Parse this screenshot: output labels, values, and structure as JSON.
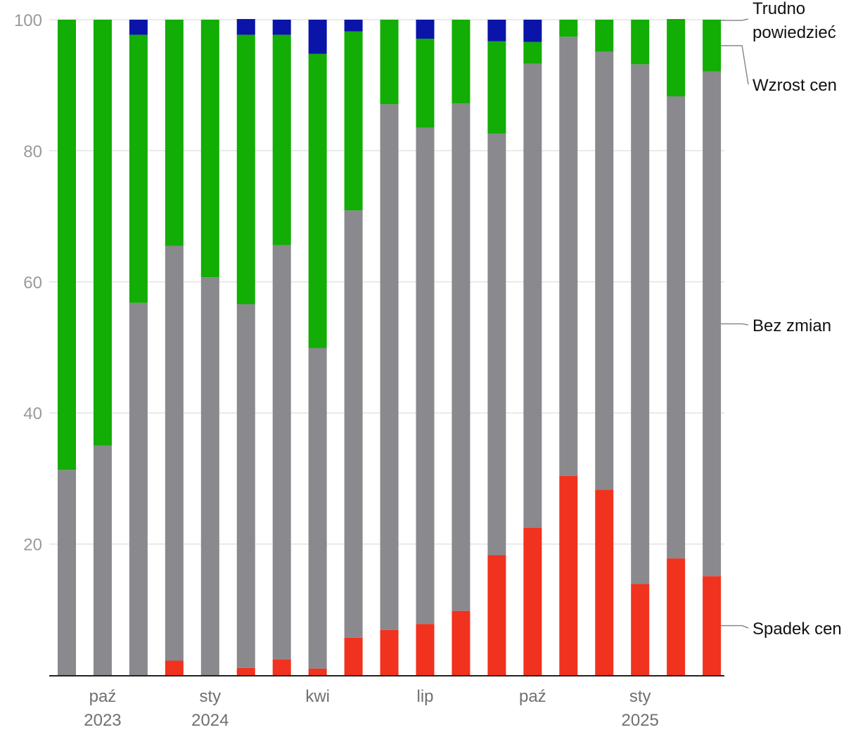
{
  "chart_data": {
    "type": "bar",
    "stacked": true,
    "ylim": [
      0,
      100
    ],
    "yticks": [
      20,
      40,
      60,
      80,
      100
    ],
    "grid": true,
    "legend_position": "right",
    "x_tick_labels": [
      {
        "index": 1,
        "label": "paź",
        "sublabel": "2023"
      },
      {
        "index": 4,
        "label": "sty",
        "sublabel": "2024"
      },
      {
        "index": 7,
        "label": "kwi",
        "sublabel": ""
      },
      {
        "index": 10,
        "label": "lip",
        "sublabel": ""
      },
      {
        "index": 13,
        "label": "paź",
        "sublabel": ""
      },
      {
        "index": 16,
        "label": "sty",
        "sublabel": "2025"
      }
    ],
    "series": [
      {
        "name": "Spadek cen",
        "color": "#f0321e",
        "values": [
          0,
          0,
          0,
          2.2,
          0,
          1.1,
          2.4,
          1.0,
          5.7,
          6.9,
          7.8,
          9.8,
          18.3,
          22.5,
          30.4,
          28.3,
          13.9,
          17.8,
          15.1
        ]
      },
      {
        "name": "Bez zmian",
        "color": "#8a898e",
        "values": [
          31.3,
          35.0,
          56.8,
          63.3,
          60.7,
          55.5,
          63.2,
          48.9,
          65.2,
          80.2,
          75.7,
          77.4,
          64.3,
          70.8,
          67.0,
          66.8,
          79.3,
          70.5,
          77.0
        ]
      },
      {
        "name": "Wzrost cen",
        "color": "#12ad05",
        "values": [
          68.7,
          65.0,
          40.9,
          34.5,
          39.3,
          41.1,
          32.1,
          44.9,
          27.3,
          12.9,
          13.6,
          12.8,
          14.1,
          3.3,
          2.6,
          4.9,
          6.8,
          11.8,
          7.9
        ]
      },
      {
        "name": "Trudno powiedzieć",
        "color": "#0a14a8",
        "values": [
          0,
          0,
          2.3,
          0,
          0,
          2.4,
          2.3,
          5.2,
          1.8,
          0,
          2.9,
          0,
          3.3,
          3.4,
          0,
          0,
          0,
          0,
          0
        ]
      }
    ],
    "legend": [
      {
        "series": 0,
        "label": "Spadek cen"
      },
      {
        "series": 1,
        "label": "Bez zmian"
      },
      {
        "series": 2,
        "label": "Wzrost cen"
      },
      {
        "series": 3,
        "label_lines": [
          "Trudno",
          "powiedzieć"
        ]
      }
    ]
  }
}
